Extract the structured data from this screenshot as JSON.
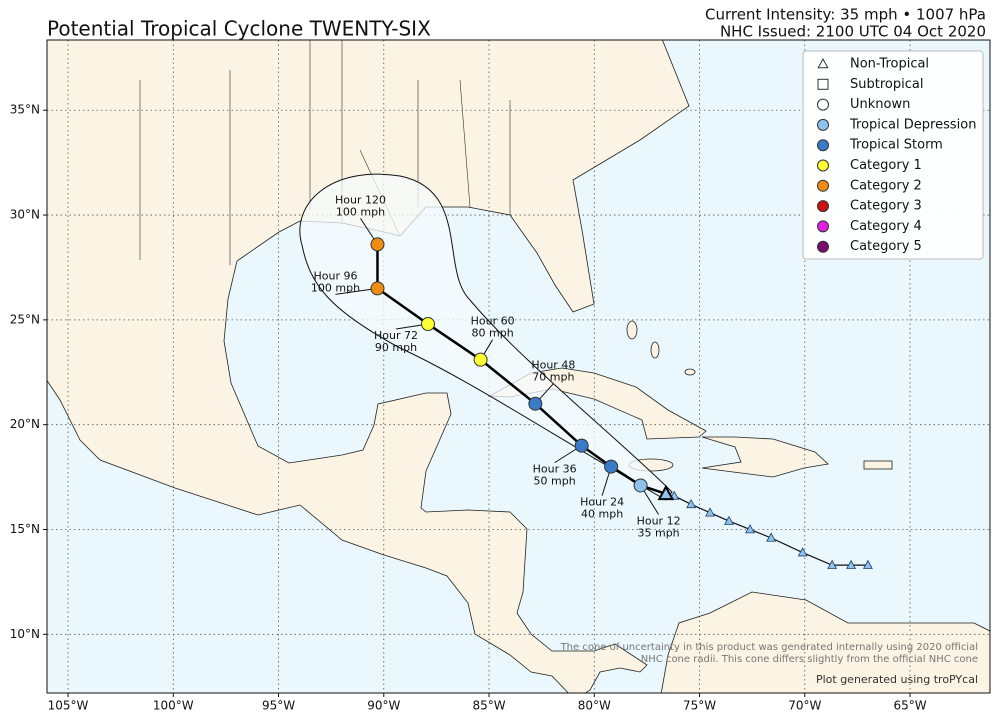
{
  "title": "Potential Tropical Cyclone TWENTY-SIX",
  "current_intensity": "Current Intensity: 35 mph • 1007 hPa",
  "issued": "NHC Issued: 2100 UTC 04 Oct 2020",
  "map": {
    "xlim": [
      -106,
      -61.2
    ],
    "ylim": [
      7.2,
      38.35
    ],
    "grid": true,
    "xticks": [
      {
        "value": -105,
        "label": "105°W"
      },
      {
        "value": -100,
        "label": "100°W"
      },
      {
        "value": -95,
        "label": "95°W"
      },
      {
        "value": -90,
        "label": "90°W"
      },
      {
        "value": -85,
        "label": "85°W"
      },
      {
        "value": -80,
        "label": "80°W"
      },
      {
        "value": -75,
        "label": "75°W"
      },
      {
        "value": -70,
        "label": "70°W"
      },
      {
        "value": -65,
        "label": "65°W"
      }
    ],
    "yticks": [
      {
        "value": 10,
        "label": "10°N"
      },
      {
        "value": 15,
        "label": "15°N"
      },
      {
        "value": 20,
        "label": "20°N"
      },
      {
        "value": 25,
        "label": "25°N"
      },
      {
        "value": 30,
        "label": "30°N"
      },
      {
        "value": 35,
        "label": "35°N"
      }
    ]
  },
  "legend": {
    "position": "upper right",
    "items": [
      {
        "label": "Non-Tropical",
        "marker": "triangle",
        "color": "#ffffff"
      },
      {
        "label": "Subtropical",
        "marker": "square",
        "color": "#ffffff"
      },
      {
        "label": "Unknown",
        "marker": "circle",
        "color": "#ffffff"
      },
      {
        "label": "Tropical Depression",
        "marker": "circle",
        "color": "#8fc2ea"
      },
      {
        "label": "Tropical Storm",
        "marker": "circle",
        "color": "#3a7bc8"
      },
      {
        "label": "Category 1",
        "marker": "circle",
        "color": "#ffff33"
      },
      {
        "label": "Category 2",
        "marker": "circle",
        "color": "#f08c14"
      },
      {
        "label": "Category 3",
        "marker": "circle",
        "color": "#cc1111"
      },
      {
        "label": "Category 4",
        "marker": "circle",
        "color": "#e020e0"
      },
      {
        "label": "Category 5",
        "marker": "circle",
        "color": "#7a0a6e"
      }
    ]
  },
  "past_track": {
    "color": "#8fc2ea",
    "lon": [
      -76.2,
      -75.4,
      -74.5,
      -73.6,
      -72.6,
      -71.6,
      -70.1,
      -68.7,
      -67.8,
      -67.0
    ],
    "lat": [
      16.6,
      16.2,
      15.8,
      15.4,
      15.0,
      14.6,
      13.9,
      13.3,
      13.3,
      13.3
    ]
  },
  "current": {
    "lon": -76.6,
    "lat": 16.7,
    "color": "#8fc2ea"
  },
  "forecast": [
    {
      "lon": -77.8,
      "lat": 17.1,
      "color": "#8fc2ea",
      "label": [
        "Hour 12",
        "35 mph"
      ]
    },
    {
      "lon": -79.2,
      "lat": 18.0,
      "color": "#3a7bc8",
      "label": [
        "Hour 24",
        "40 mph"
      ]
    },
    {
      "lon": -80.6,
      "lat": 19.0,
      "color": "#3a7bc8",
      "label": [
        "Hour 36",
        "50 mph"
      ]
    },
    {
      "lon": -82.8,
      "lat": 21.0,
      "color": "#3a7bc8",
      "label": [
        "Hour 48",
        "70 mph"
      ]
    },
    {
      "lon": -85.4,
      "lat": 23.1,
      "color": "#ffff33",
      "label": [
        "Hour 60",
        "80 mph"
      ]
    },
    {
      "lon": -87.9,
      "lat": 24.8,
      "color": "#ffff33",
      "label": [
        "Hour 72",
        "90 mph"
      ]
    },
    {
      "lon": -90.3,
      "lat": 26.5,
      "color": "#f08c14",
      "label": [
        "Hour 96",
        "100 mph"
      ]
    },
    {
      "lon": -90.3,
      "lat": 28.6,
      "color": "#f08c14",
      "label": [
        "Hour 120",
        "100 mph"
      ]
    }
  ],
  "footnote": [
    "The cone of uncertainty in this product was generated internally using 2020 official",
    "NHC cone radii. This cone differs slightly from the official NHC cone"
  ],
  "credit": "Plot generated using troPYcal"
}
